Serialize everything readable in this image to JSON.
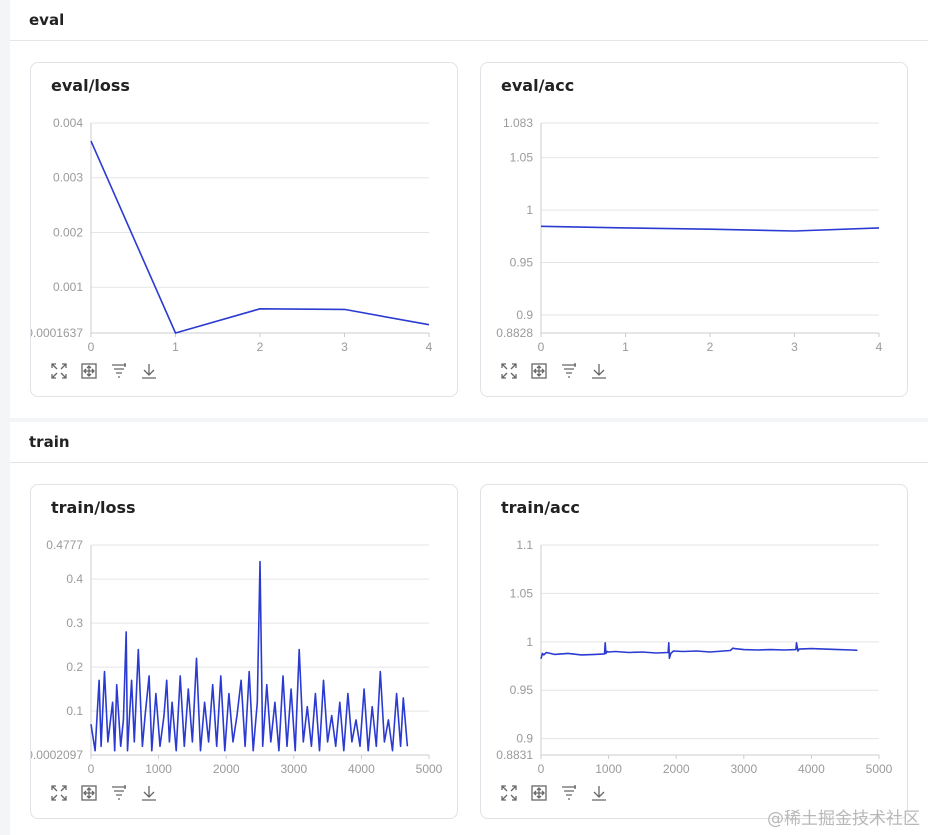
{
  "sections": [
    {
      "title": "eval"
    },
    {
      "title": "train"
    }
  ],
  "colors": {
    "line": "#2b3bd1",
    "grid": "#e5e5e5",
    "tick": "#9a9a9a"
  },
  "toolbar": {
    "icons": [
      "fullscreen-icon",
      "fit-icon",
      "filter-icon",
      "download-icon"
    ]
  },
  "watermark": "@稀土掘金技术社区",
  "chart_data": [
    {
      "id": "eval-loss",
      "title": "eval/loss",
      "type": "line",
      "x": [
        0,
        1,
        2,
        3,
        4
      ],
      "y": [
        0.00367,
        0.0001637,
        0.000605,
        0.000595,
        0.000315
      ],
      "xlim": [
        0,
        4
      ],
      "ylim": [
        0.0001637,
        0.004
      ],
      "xticks": [
        "0",
        "1",
        "2",
        "3",
        "4"
      ],
      "yticks": [
        {
          "v": 0.004,
          "label": "0.004"
        },
        {
          "v": 0.003,
          "label": "0.003"
        },
        {
          "v": 0.002,
          "label": "0.002"
        },
        {
          "v": 0.001,
          "label": "0.001"
        },
        {
          "v": 0.0001637,
          "label": "0.0001637"
        }
      ]
    },
    {
      "id": "eval-acc",
      "title": "eval/acc",
      "type": "line",
      "x": [
        0,
        1,
        2,
        3,
        4
      ],
      "y": [
        0.9845,
        0.983,
        0.9818,
        0.98,
        0.983
      ],
      "xlim": [
        0,
        4
      ],
      "ylim": [
        0.8828,
        1.083
      ],
      "xticks": [
        "0",
        "1",
        "2",
        "3",
        "4"
      ],
      "yticks": [
        {
          "v": 1.083,
          "label": "1.083"
        },
        {
          "v": 1.05,
          "label": "1.05"
        },
        {
          "v": 1.0,
          "label": "1"
        },
        {
          "v": 0.95,
          "label": "0.95"
        },
        {
          "v": 0.9,
          "label": "0.9"
        },
        {
          "v": 0.8828,
          "label": "0.8828"
        }
      ]
    },
    {
      "id": "train-loss",
      "title": "train/loss",
      "type": "line",
      "x": [
        0,
        60,
        120,
        150,
        200,
        250,
        320,
        350,
        380,
        440,
        480,
        520,
        540,
        600,
        640,
        700,
        760,
        800,
        860,
        900,
        960,
        1020,
        1080,
        1120,
        1160,
        1200,
        1260,
        1320,
        1380,
        1440,
        1500,
        1560,
        1620,
        1680,
        1740,
        1800,
        1860,
        1920,
        1980,
        2040,
        2100,
        2160,
        2220,
        2280,
        2340,
        2400,
        2460,
        2500,
        2540,
        2600,
        2660,
        2720,
        2780,
        2840,
        2900,
        2960,
        3020,
        3080,
        3140,
        3200,
        3260,
        3320,
        3380,
        3440,
        3500,
        3560,
        3620,
        3680,
        3740,
        3800,
        3860,
        3920,
        3980,
        4040,
        4100,
        4160,
        4220,
        4280,
        4340,
        4400,
        4460,
        4520,
        4580,
        4620,
        4680
      ],
      "y": [
        0.07,
        0.01,
        0.17,
        0.02,
        0.19,
        0.03,
        0.12,
        0.01,
        0.16,
        0.02,
        0.08,
        0.28,
        0.01,
        0.17,
        0.03,
        0.24,
        0.02,
        0.09,
        0.18,
        0.01,
        0.14,
        0.02,
        0.09,
        0.17,
        0.03,
        0.12,
        0.01,
        0.18,
        0.02,
        0.15,
        0.03,
        0.22,
        0.01,
        0.12,
        0.03,
        0.16,
        0.02,
        0.18,
        0.01,
        0.14,
        0.03,
        0.09,
        0.17,
        0.02,
        0.19,
        0.01,
        0.12,
        0.44,
        0.02,
        0.16,
        0.03,
        0.12,
        0.01,
        0.18,
        0.02,
        0.15,
        0.01,
        0.24,
        0.03,
        0.11,
        0.02,
        0.14,
        0.01,
        0.17,
        0.03,
        0.09,
        0.02,
        0.12,
        0.01,
        0.14,
        0.03,
        0.08,
        0.02,
        0.15,
        0.01,
        0.11,
        0.02,
        0.19,
        0.03,
        0.08,
        0.01,
        0.14,
        0.02,
        0.13,
        0.02
      ],
      "xlim": [
        0,
        5000
      ],
      "ylim": [
        0.0002097,
        0.4777
      ],
      "xticks": [
        "0",
        "1000",
        "2000",
        "3000",
        "4000",
        "5000"
      ],
      "yticks": [
        {
          "v": 0.4777,
          "label": "0.4777"
        },
        {
          "v": 0.4,
          "label": "0.4"
        },
        {
          "v": 0.3,
          "label": "0.3"
        },
        {
          "v": 0.2,
          "label": "0.2"
        },
        {
          "v": 0.1,
          "label": "0.1"
        },
        {
          "v": 0.0002097,
          "label": "0.0002097"
        }
      ]
    },
    {
      "id": "train-acc",
      "title": "train/acc",
      "type": "line",
      "x": [
        0,
        20,
        40,
        80,
        200,
        400,
        600,
        800,
        940,
        950,
        960,
        980,
        1000,
        1100,
        1300,
        1500,
        1700,
        1880,
        1890,
        1900,
        1920,
        1960,
        2100,
        2300,
        2500,
        2700,
        2800,
        2840,
        2860,
        3000,
        3200,
        3400,
        3600,
        3770,
        3780,
        3800,
        3820,
        4000,
        4200,
        4400,
        4600,
        4680
      ],
      "y": [
        0.9825,
        0.988,
        0.9865,
        0.989,
        0.987,
        0.988,
        0.9865,
        0.987,
        0.9875,
        0.999,
        0.988,
        0.99,
        0.9895,
        0.99,
        0.989,
        0.9895,
        0.9885,
        0.989,
        0.999,
        0.983,
        0.988,
        0.9905,
        0.99,
        0.9905,
        0.9895,
        0.9905,
        0.991,
        0.9935,
        0.993,
        0.992,
        0.9915,
        0.992,
        0.9915,
        0.992,
        0.999,
        0.9905,
        0.9925,
        0.993,
        0.9925,
        0.992,
        0.9915,
        0.9912
      ],
      "xlim": [
        0,
        5000
      ],
      "ylim": [
        0.8831,
        1.1
      ],
      "xticks": [
        "0",
        "1000",
        "2000",
        "3000",
        "4000",
        "5000"
      ],
      "yticks": [
        {
          "v": 1.1,
          "label": "1.1"
        },
        {
          "v": 1.05,
          "label": "1.05"
        },
        {
          "v": 1.0,
          "label": "1"
        },
        {
          "v": 0.95,
          "label": "0.95"
        },
        {
          "v": 0.9,
          "label": "0.9"
        },
        {
          "v": 0.8831,
          "label": "0.8831"
        }
      ]
    }
  ]
}
